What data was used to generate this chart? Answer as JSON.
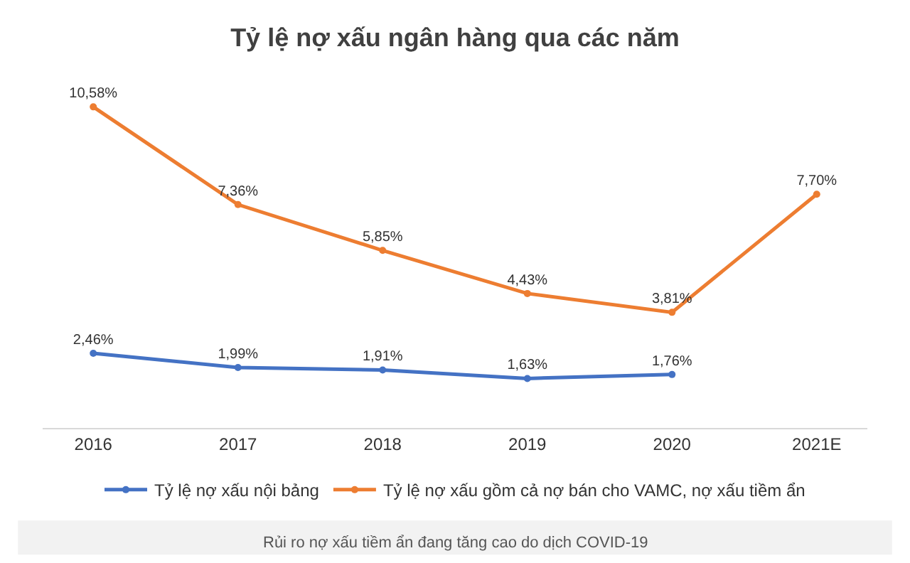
{
  "chart_data": {
    "type": "line",
    "title": "Tỷ lệ nợ xấu ngân hàng qua các năm",
    "categories": [
      "2016",
      "2017",
      "2018",
      "2019",
      "2020",
      "2021E"
    ],
    "series": [
      {
        "name": "Tỷ lệ nợ xấu nội bảng",
        "color": "#4472c4",
        "values": [
          2.46,
          1.99,
          1.91,
          1.63,
          1.76,
          null
        ],
        "value_labels": [
          "2,46%",
          "1,99%",
          "1,91%",
          "1,63%",
          "1,76%",
          null
        ]
      },
      {
        "name": "Tỷ lệ nợ xấu gồm cả nợ bán cho VAMC, nợ xấu tiềm ẩn",
        "color": "#ed7d31",
        "values": [
          10.58,
          7.36,
          5.85,
          4.43,
          3.81,
          7.7
        ],
        "value_labels": [
          "10,58%",
          "7,36%",
          "5,85%",
          "4,43%",
          "3,81%",
          "7,70%"
        ]
      }
    ],
    "tick_labels": "x",
    "marker": "circle",
    "legend": "bottom",
    "annotations": [
      "Rủi ro nợ xấu tiềm ẩn đang tăng cao do dịch COVID-19"
    ]
  }
}
